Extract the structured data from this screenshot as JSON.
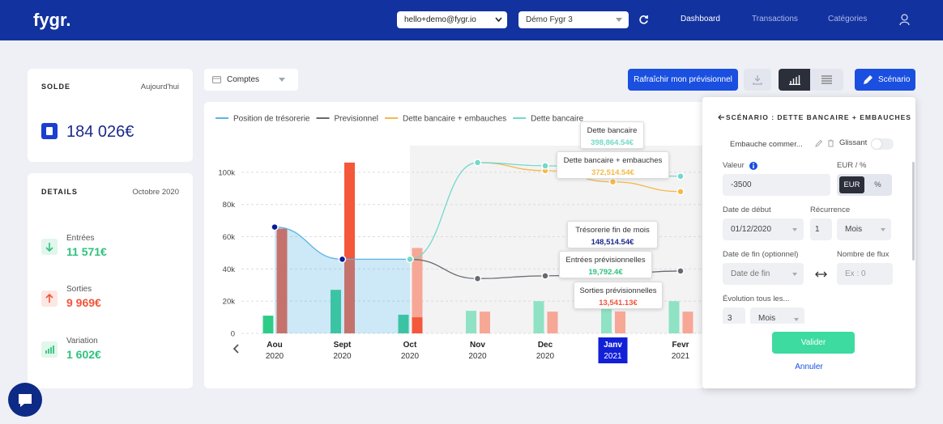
{
  "header": {
    "logo": "fygr.",
    "account_select": "hello+demo@fygr.io",
    "workspace_select": "Démo Fygr 3",
    "nav": [
      "Dashboard",
      "Transactions",
      "Catégories"
    ]
  },
  "solde": {
    "title": "SOLDE",
    "period": "Aujourd'hui",
    "amount": "184 026€"
  },
  "details": {
    "title": "DETAILS",
    "period": "Octobre 2020",
    "items": [
      {
        "label": "Entrées",
        "amount": "11 571€"
      },
      {
        "label": "Sorties",
        "amount": "9 969€"
      },
      {
        "label": "Variation",
        "amount": "1 602€"
      }
    ]
  },
  "toolbar": {
    "accounts": "Comptes",
    "refresh": "Rafraîchir mon prévisionnel",
    "scenario": "Scénario"
  },
  "chart_data": {
    "type": "combo",
    "categories": [
      {
        "month": "Aou",
        "year": "2020"
      },
      {
        "month": "Sept",
        "year": "2020"
      },
      {
        "month": "Oct",
        "year": "2020"
      },
      {
        "month": "Nov",
        "year": "2020"
      },
      {
        "month": "Dec",
        "year": "2020"
      },
      {
        "month": "Janv",
        "year": "2021"
      },
      {
        "month": "Fevr",
        "year": "2021"
      }
    ],
    "selected": 5,
    "ylim": [
      0,
      115000
    ],
    "yticks": [
      0,
      {
        "value": 20000,
        "label": "20k"
      },
      {
        "value": 40000,
        "label": "40k"
      },
      {
        "value": 60000,
        "label": "60k"
      },
      {
        "value": 80000,
        "label": "80k"
      },
      {
        "value": 100000,
        "label": "100k"
      }
    ],
    "grid": true,
    "bars": [
      {
        "color": "#8fe3c4",
        "values": [
          null,
          null,
          null,
          14000,
          20000,
          19792.4,
          20000
        ]
      },
      {
        "color": "#2ecc87",
        "values": [
          11000,
          27000,
          11571,
          null,
          null,
          null,
          null
        ]
      },
      {
        "color": "#f7a796",
        "values": [
          null,
          null,
          53000,
          13500,
          13500,
          13541.13,
          13500
        ]
      },
      {
        "color": "#f4573a",
        "values": [
          65000,
          106000,
          9969,
          null,
          null,
          null,
          null
        ]
      }
    ],
    "series": [
      {
        "name": "Position de trésorerie",
        "color": "#5bb4e5",
        "marker_color": "#0a1a9c",
        "area": true,
        "values": [
          66000,
          46000,
          46000,
          null,
          null,
          null,
          null
        ]
      },
      {
        "name": "Previsionnel",
        "color": "#666a70",
        "values": [
          null,
          null,
          46000,
          34000,
          35700,
          37000,
          38700
        ]
      },
      {
        "name": "Dette bancaire + embauches",
        "color": "#f5b94a",
        "values": [
          null,
          null,
          null,
          106000,
          101000,
          94000,
          88000
        ]
      },
      {
        "name": "Dette bancaire",
        "color": "#72d9c8",
        "values": [
          null,
          null,
          46000,
          106000,
          104000,
          101000,
          97500
        ]
      }
    ],
    "tooltips": [
      {
        "title": "Dette bancaire",
        "value": "398,864.54€"
      },
      {
        "title": "Dette bancaire + embauches",
        "value": "372,514.54€"
      },
      {
        "title": "Trésorerie fin de mois",
        "value": "148,514.54€"
      },
      {
        "title": "Entrées prévisionnelles",
        "value": "19,792.4€"
      },
      {
        "title": "Sorties prévisionnelles",
        "value": "13,541.13€"
      }
    ]
  },
  "scenario_panel": {
    "title": "SCÉNARIO : DETTE BANCAIRE + EMBAUCHES",
    "item": "Embauche commer...",
    "sliding": "Glissant",
    "value_label": "Valeur",
    "value": "-3500",
    "unit_label": "EUR / %",
    "units": [
      "EUR",
      "%"
    ],
    "start_label": "Date de début",
    "start": "01/12/2020",
    "recurrence_label": "Récurrence",
    "recurrence_count": "1",
    "recurrence_unit": "Mois",
    "end_label": "Date de fin (optionnel)",
    "end_placeholder": "Date de fin",
    "flows_label": "Nombre de flux",
    "flows_placeholder": "Ex : 0",
    "evolution_label": "Évolution tous les...",
    "evolution_count": "3",
    "evolution_unit": "Mois",
    "confirm": "Valider",
    "cancel": "Annuler"
  }
}
